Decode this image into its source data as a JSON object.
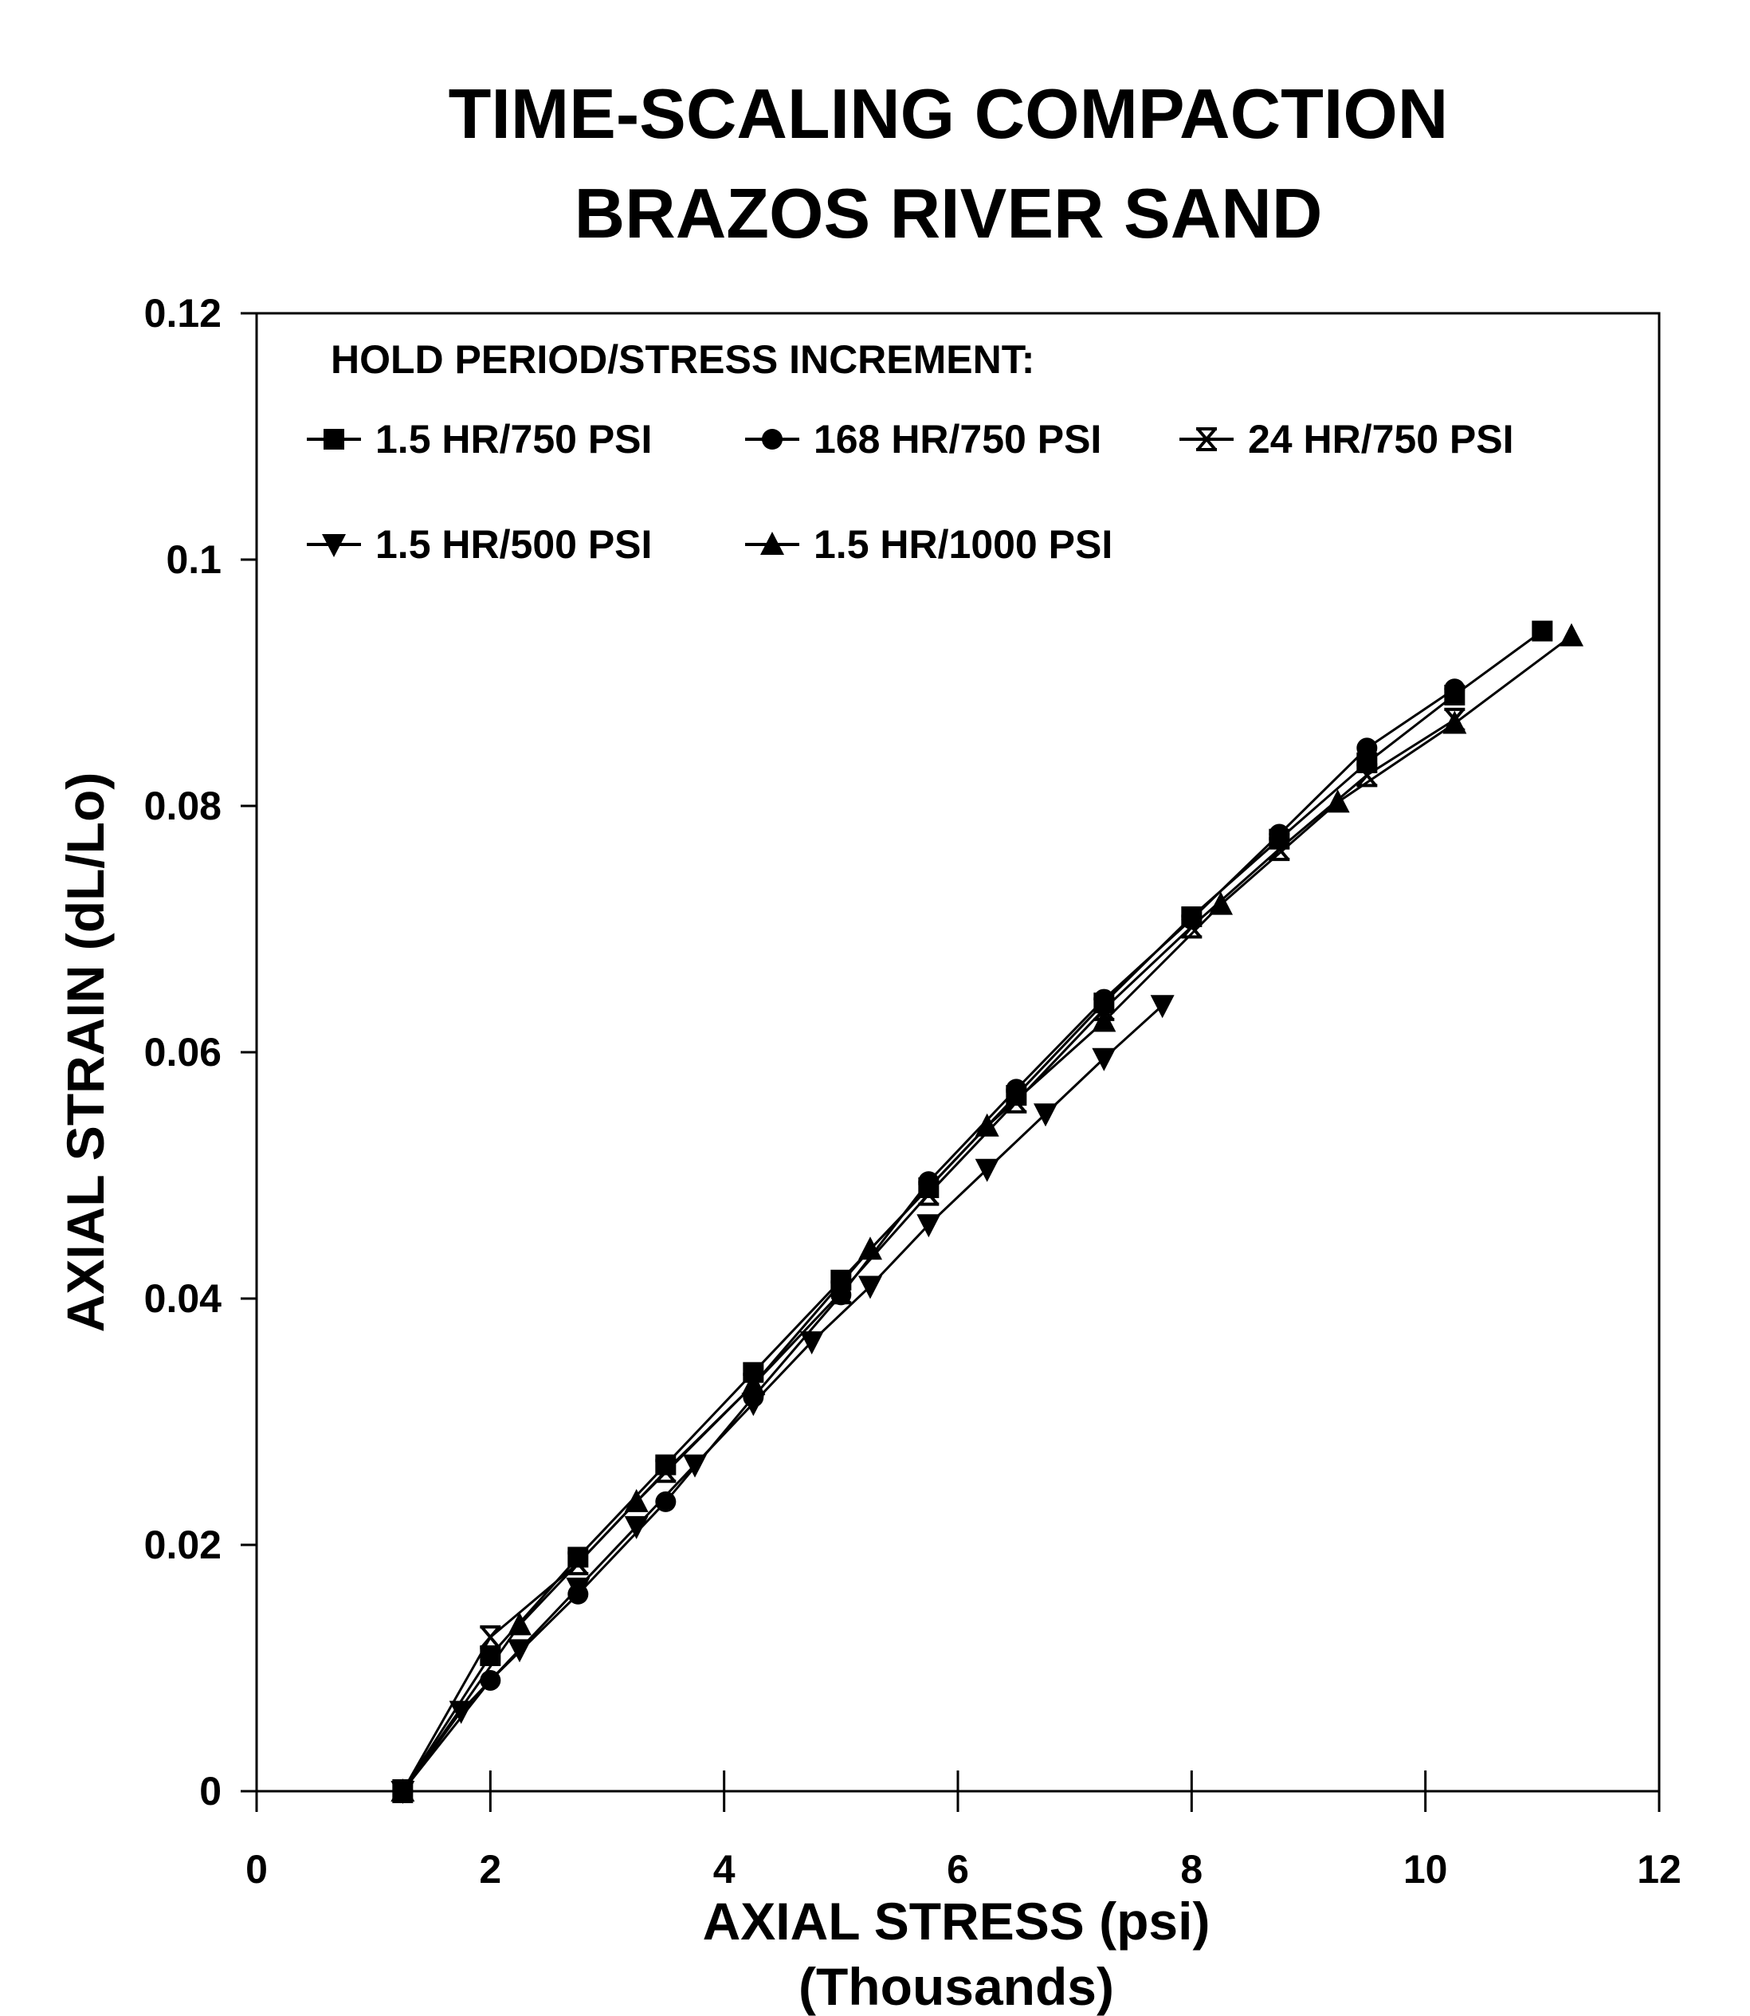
{
  "chart_data": {
    "type": "line",
    "title": [
      "TIME-SCALING COMPACTION",
      "BRAZOS RIVER SAND"
    ],
    "xlabel": [
      "AXIAL STRESS (psi)",
      "(Thousands)"
    ],
    "ylabel": "AXIAL STRAIN (dL/Lo)",
    "xlim": [
      0,
      12
    ],
    "ylim": [
      0,
      0.12
    ],
    "xticks": [
      0,
      2,
      4,
      6,
      8,
      10,
      12
    ],
    "xtick_labels": [
      "0",
      "2",
      "4",
      "6",
      "8",
      "10",
      "12"
    ],
    "yticks": [
      0,
      0.02,
      0.04,
      0.06,
      0.08,
      0.1,
      0.12
    ],
    "ytick_labels": [
      "0",
      "0.02",
      "0.04",
      "0.06",
      "0.08",
      "0.1",
      "0.12"
    ],
    "grid": false,
    "legend_title": "HOLD PERIOD/STRESS INCREMENT:",
    "legend_position": "top-left inside plot",
    "series": [
      {
        "name": "1.5 HR/750 PSI",
        "marker": "square",
        "x": [
          1.25,
          2.0,
          2.75,
          3.5,
          4.25,
          5.0,
          5.75,
          6.5,
          7.25,
          8.0,
          8.75,
          9.5,
          10.25,
          11.0
        ],
        "y": [
          0.0,
          0.011,
          0.019,
          0.0265,
          0.034,
          0.0415,
          0.049,
          0.0565,
          0.064,
          0.071,
          0.0773,
          0.0835,
          0.089,
          0.0942
        ]
      },
      {
        "name": "168 HR/750 PSI",
        "marker": "circle",
        "x": [
          1.25,
          2.0,
          2.75,
          3.5,
          4.25,
          5.0,
          5.75,
          6.5,
          7.25,
          8.0,
          8.75,
          9.5,
          10.25
        ],
        "y": [
          0.0,
          0.009,
          0.016,
          0.0235,
          0.032,
          0.0403,
          0.0495,
          0.057,
          0.0643,
          0.0708,
          0.0777,
          0.0847,
          0.0895
        ]
      },
      {
        "name": "24 HR/750 PSI",
        "marker": "hourglass",
        "x": [
          1.25,
          2.0,
          2.75,
          3.5,
          4.25,
          5.0,
          5.75,
          6.5,
          7.25,
          8.0,
          8.75,
          9.5,
          10.25
        ],
        "y": [
          0.0,
          0.0125,
          0.0185,
          0.026,
          0.033,
          0.0405,
          0.0485,
          0.056,
          0.0635,
          0.0702,
          0.0765,
          0.0825,
          0.087
        ]
      },
      {
        "name": "1.5 HR/500 PSI",
        "marker": "triangle-down",
        "x": [
          1.25,
          1.75,
          2.25,
          2.75,
          3.25,
          3.75,
          4.25,
          4.75,
          5.25,
          5.75,
          6.25,
          6.75,
          7.25,
          7.75
        ],
        "y": [
          0.0,
          0.0065,
          0.0115,
          0.0165,
          0.0215,
          0.0265,
          0.0315,
          0.0365,
          0.041,
          0.046,
          0.0505,
          0.055,
          0.0595,
          0.0638
        ]
      },
      {
        "name": "1.5 HR/1000 PSI",
        "marker": "triangle-up",
        "x": [
          1.25,
          2.25,
          3.25,
          4.25,
          5.25,
          6.25,
          7.25,
          8.25,
          9.25,
          10.25,
          11.25
        ],
        "y": [
          0.0,
          0.0135,
          0.0235,
          0.033,
          0.044,
          0.054,
          0.0625,
          0.072,
          0.0803,
          0.0867,
          0.0938
        ]
      }
    ]
  }
}
